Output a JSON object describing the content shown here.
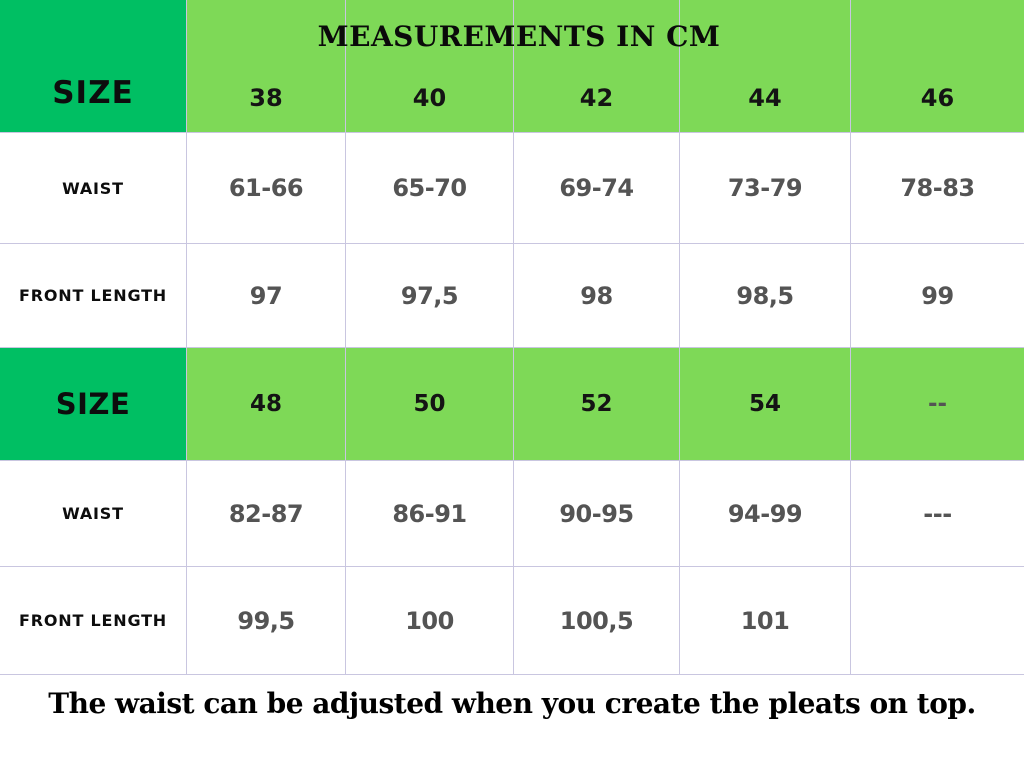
{
  "header": {
    "size_label": "SIZE",
    "title": "MEASUREMENTS IN CM",
    "sizes": [
      "38",
      "40",
      "42",
      "44",
      "46"
    ]
  },
  "rows": [
    {
      "label": "WAIST",
      "values": [
        "61-66",
        "65-70",
        "69-74",
        "73-79",
        "78-83"
      ]
    },
    {
      "label": "FRONT LENGTH",
      "values": [
        "97",
        "97,5",
        "98",
        "98,5",
        "99"
      ]
    },
    {
      "label": "SIZE",
      "values": [
        "48",
        "50",
        "52",
        "54",
        "--"
      ]
    },
    {
      "label": "WAIST",
      "values": [
        "82-87",
        "86-91",
        "90-95",
        "94-99",
        "---"
      ]
    },
    {
      "label": "FRONT LENGTH",
      "values": [
        "99,5",
        "100",
        "100,5",
        "101",
        ""
      ]
    }
  ],
  "footer": {
    "note": "The waist can be adjusted when you create the pleats on top."
  },
  "colors": {
    "green": "#00bf63",
    "light_green": "#7ed957",
    "value_text": "#545454",
    "label_text": "#0d0d0d",
    "border": "#c9c6e0"
  }
}
